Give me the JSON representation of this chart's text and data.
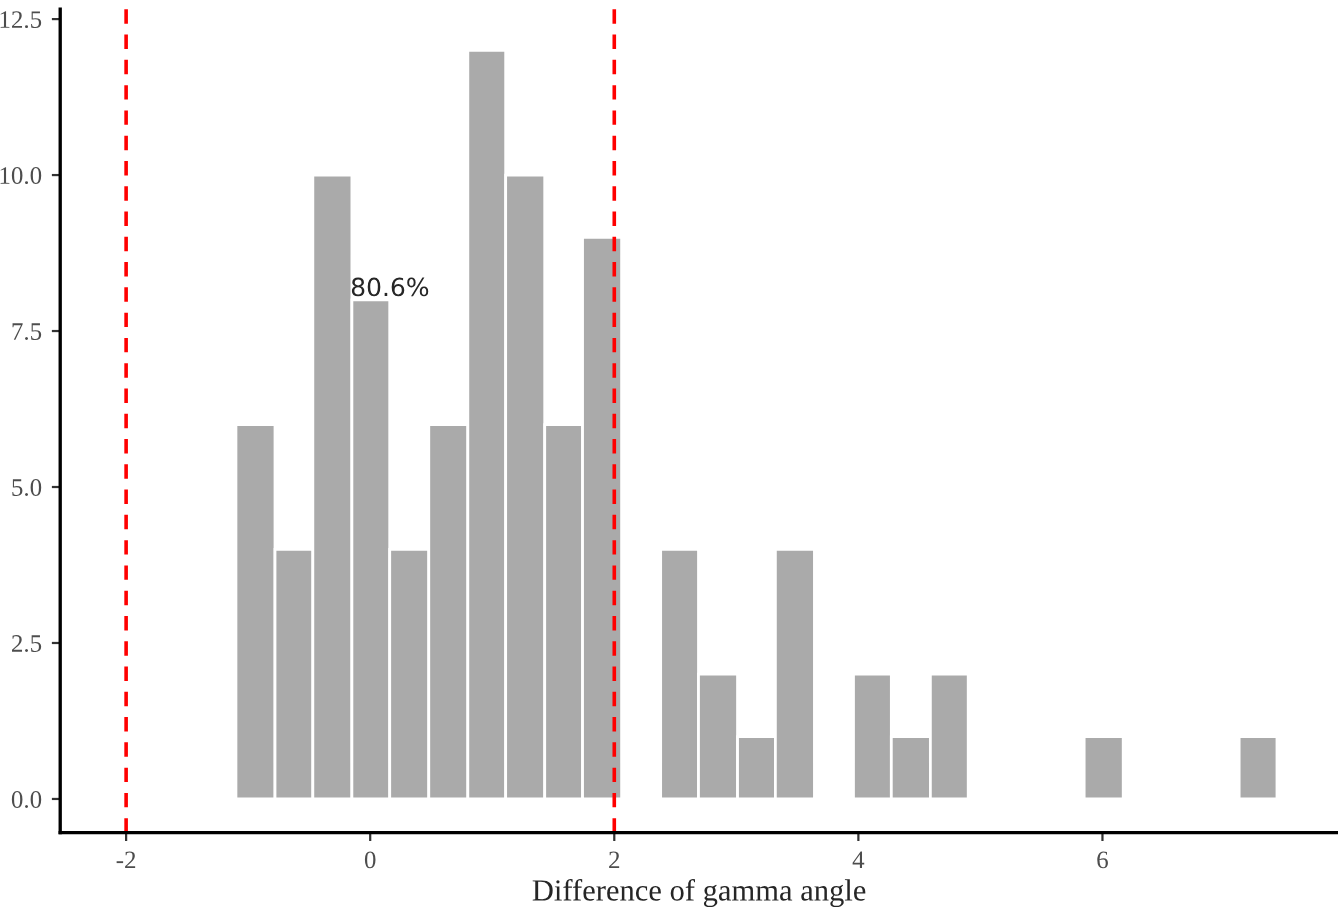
{
  "chart_data": {
    "type": "histogram",
    "xlabel": "Difference of gamma angle",
    "bins": [
      -1.1,
      -0.78,
      -0.47,
      -0.15,
      0.16,
      0.48,
      0.8,
      1.11,
      1.43,
      1.74,
      2.06,
      2.38,
      2.69,
      3.01,
      3.32,
      3.64,
      3.96,
      4.27,
      4.59,
      4.9,
      5.85,
      6.17,
      7.12,
      7.43
    ],
    "values": [
      6,
      4,
      10,
      8,
      4,
      6,
      12,
      10,
      6,
      9,
      0,
      4,
      2,
      1,
      4,
      0,
      2,
      1,
      2,
      0,
      1,
      0,
      1
    ],
    "color": "#aaaaaa",
    "xlim": [
      -2.54,
      7.93
    ],
    "xticks": [
      -2,
      0,
      2,
      4,
      6
    ],
    "ylim": [
      -0.54,
      12.66
    ],
    "yticks": [
      {
        "value": 0,
        "label": "0.0"
      },
      {
        "value": 2.5,
        "label": "2.5"
      },
      {
        "value": 5,
        "label": "5.0"
      },
      {
        "value": 7.5,
        "label": "7.5"
      },
      {
        "value": 10,
        "label": "10.0"
      },
      {
        "value": 12.5,
        "label": "12.5"
      }
    ],
    "ref_lines": [
      {
        "axis": "x",
        "value": -2,
        "color": "#ff0000",
        "line_style": "dashed"
      },
      {
        "axis": "x",
        "value": 2,
        "color": "#ff0000",
        "line_style": "dashed"
      }
    ],
    "annotations": [
      "80.6%"
    ],
    "grid": false,
    "legend": false
  }
}
